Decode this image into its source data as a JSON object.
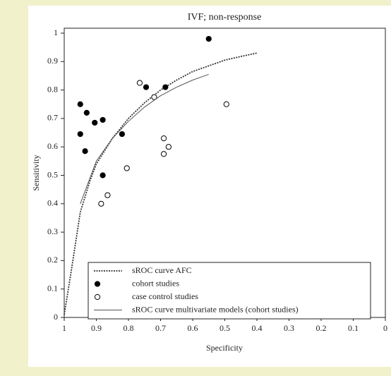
{
  "chart_data": {
    "type": "scatter",
    "title": "IVF; non-response",
    "x_label": "Specificity",
    "y_label": "Sensitivity",
    "xlim": [
      1,
      0
    ],
    "ylim": [
      0,
      1
    ],
    "xticks": [
      1,
      0.9,
      0.8,
      0.7,
      0.6,
      0.5,
      0.4,
      0.3,
      0.2,
      0.1,
      0
    ],
    "yticks": [
      0,
      0.1,
      0.2,
      0.3,
      0.4,
      0.5,
      0.6,
      0.7,
      0.8,
      0.9,
      1
    ],
    "legend": "bottom-left",
    "series": [
      {
        "name": "sROC curve AFC",
        "style": "dotted-line",
        "color": "#333333",
        "x": [
          1,
          0.98,
          0.95,
          0.92,
          0.9,
          0.85,
          0.8,
          0.75,
          0.7,
          0.65,
          0.6,
          0.55,
          0.5,
          0.45,
          0.4
        ],
        "values": [
          0.01,
          0.15,
          0.37,
          0.48,
          0.54,
          0.63,
          0.7,
          0.755,
          0.8,
          0.835,
          0.865,
          0.885,
          0.905,
          0.918,
          0.93
        ]
      },
      {
        "name": "cohort studies",
        "style": "filled-marker",
        "color": "#000000",
        "x": [
          0.95,
          0.93,
          0.905,
          0.88,
          0.95,
          0.935,
          0.88,
          0.82,
          0.745,
          0.685,
          0.55
        ],
        "values": [
          0.75,
          0.72,
          0.685,
          0.695,
          0.645,
          0.585,
          0.5,
          0.645,
          0.81,
          0.81,
          0.98
        ]
      },
      {
        "name": "case control studies",
        "style": "open-marker",
        "color": "#000000",
        "x": [
          0.765,
          0.72,
          0.69,
          0.675,
          0.69,
          0.805,
          0.865,
          0.885,
          0.495
        ],
        "values": [
          0.825,
          0.775,
          0.63,
          0.6,
          0.575,
          0.525,
          0.43,
          0.4,
          0.75
        ]
      },
      {
        "name": "sROC curve multivariate models (cohort studies)",
        "style": "solid-line",
        "color": "#555555",
        "x": [
          0.95,
          0.9,
          0.85,
          0.8,
          0.75,
          0.7,
          0.65,
          0.6,
          0.55
        ],
        "values": [
          0.4,
          0.55,
          0.63,
          0.69,
          0.74,
          0.78,
          0.81,
          0.835,
          0.855
        ]
      }
    ]
  }
}
